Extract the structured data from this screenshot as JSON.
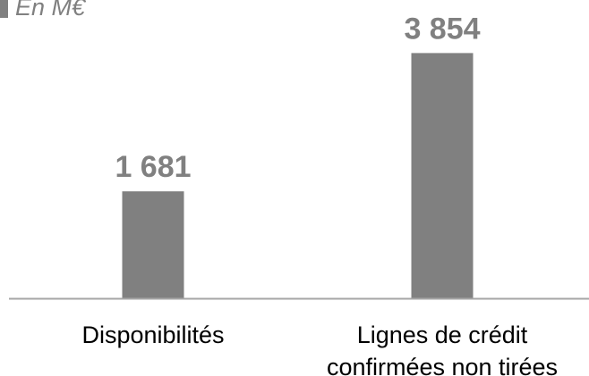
{
  "chart_data": {
    "type": "bar",
    "unit_label": "En M€",
    "categories": [
      [
        "Disponibilités"
      ],
      [
        "Lignes de crédit",
        "confirmées non tirées"
      ]
    ],
    "values": [
      1681,
      3854
    ],
    "value_labels": [
      "1 681",
      "3 854"
    ],
    "bar_color": "#808080",
    "label_color": "#808080",
    "axis_color": "#a6a6a6",
    "category_text_color": "#000000",
    "ylim": [
      0,
      4000
    ],
    "grid": false,
    "legend": "none"
  }
}
